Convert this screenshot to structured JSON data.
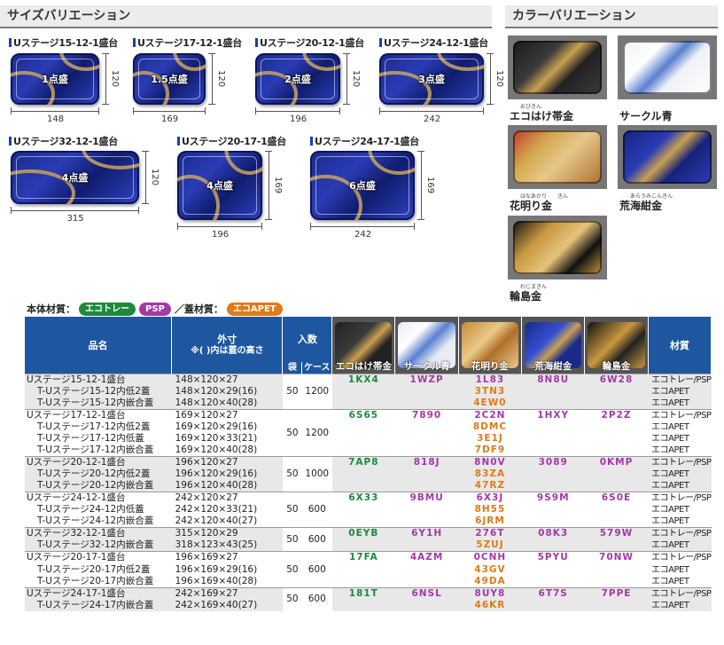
{
  "size_section": {
    "title": "サイズバリエーション",
    "items": [
      {
        "name": "Uステージ15-12-1盛台",
        "label": "1点盛",
        "w": "148",
        "h": "120"
      },
      {
        "name": "Uステージ17-12-1盛台",
        "label": "1.5点盛",
        "w": "169",
        "h": "120"
      },
      {
        "name": "Uステージ20-12-1盛台",
        "label": "2点盛",
        "w": "196",
        "h": "120"
      },
      {
        "name": "Uステージ24-12-1盛台",
        "label": "3点盛",
        "w": "242",
        "h": "120"
      },
      {
        "name": "Uステージ32-12-1盛台",
        "label": "4点盛",
        "w": "315",
        "h": "120"
      },
      {
        "name": "Uステージ20-17-1盛台",
        "label": "4点盛",
        "w": "196",
        "h": "169"
      },
      {
        "name": "Uステージ24-17-1盛台",
        "label": "6点盛",
        "w": "242",
        "h": "169"
      }
    ]
  },
  "color_section": {
    "title": "カラーバリエーション",
    "items": [
      {
        "name": "エコはけ帯金",
        "ruby": "おびきん",
        "color": "#c8a050"
      },
      {
        "name": "サークル青",
        "ruby": "",
        "color": "#5a7fd0"
      },
      {
        "name": "花明り金",
        "ruby": "はなあかり　　きん",
        "color": "#d4a850"
      },
      {
        "name": "荒海紺金",
        "ruby": "あらうみこんきん",
        "color": "#2a3cb5"
      },
      {
        "name": "輪島金",
        "ruby": "わじまきん",
        "color": "#c89840"
      }
    ]
  },
  "materials": {
    "body_label": "本体材質：",
    "body_eco": "エコトレー",
    "body_psp": "PSP",
    "lid_label": "／蓋材質：",
    "lid_pet": "エコAPET",
    "colors": {
      "eco": "#1d8a3b",
      "psp": "#a438a8",
      "pet": "#e07a17"
    }
  },
  "table": {
    "headers": {
      "name": "品名",
      "size": "外寸\n※( )内は蓋の高さ",
      "qty": "入数",
      "bag": "袋",
      "case": "ケース",
      "material": "材質"
    },
    "color_headers": [
      "エコはけ帯金",
      "サークル青",
      "花明り金",
      "荒海紺金",
      "輪島金"
    ],
    "groups": [
      {
        "bag": "50",
        "case": "1200",
        "rows": [
          {
            "name": "Uステージ15-12-1盛台",
            "size": "148×120×27",
            "codes": [
              "1KX4",
              "1WZP",
              "1L83",
              "8N8U",
              "6W28"
            ],
            "mat": "エコトレー/PSP"
          },
          {
            "name": "T-Uステージ15-12内低2蓋",
            "size": "148×120×29(16)",
            "pet": "3TN3",
            "mat": "エコAPET"
          },
          {
            "name": "T-Uステージ15-12内嵌合蓋",
            "size": "148×120×40(28)",
            "pet": "4EW0",
            "mat": "エコAPET"
          }
        ]
      },
      {
        "bag": "50",
        "case": "1200",
        "rows": [
          {
            "name": "Uステージ17-12-1盛台",
            "size": "169×120×27",
            "codes": [
              "6S65",
              "7890",
              "2C2N",
              "1HXY",
              "2P2Z"
            ],
            "mat": "エコトレー/PSP"
          },
          {
            "name": "T-Uステージ17-12内低2蓋",
            "size": "169×120×29(16)",
            "pet": "8DMC",
            "mat": "エコAPET"
          },
          {
            "name": "T-Uステージ17-12内低蓋",
            "size": "169×120×33(21)",
            "pet": "3E1J",
            "mat": "エコAPET"
          },
          {
            "name": "T-Uステージ17-12内嵌合蓋",
            "size": "169×120×40(28)",
            "pet": "7DF9",
            "mat": "エコAPET"
          }
        ]
      },
      {
        "bag": "50",
        "case": "1000",
        "rows": [
          {
            "name": "Uステージ20-12-1盛台",
            "size": "196×120×27",
            "codes": [
              "7AP8",
              "818J",
              "8N0V",
              "3089",
              "0KMP"
            ],
            "mat": "エコトレー/PSP"
          },
          {
            "name": "T-Uステージ20-12内低2蓋",
            "size": "196×120×29(16)",
            "pet": "83ZA",
            "mat": "エコAPET"
          },
          {
            "name": "T-Uステージ20-12内嵌合蓋",
            "size": "196×120×40(28)",
            "pet": "47RZ",
            "mat": "エコAPET"
          }
        ]
      },
      {
        "bag": "50",
        "case": "600",
        "rows": [
          {
            "name": "Uステージ24-12-1盛台",
            "size": "242×120×27",
            "codes": [
              "6X33",
              "9BMU",
              "6X3J",
              "9S9M",
              "6S0E"
            ],
            "mat": "エコトレー/PSP"
          },
          {
            "name": "T-Uステージ24-12内低蓋",
            "size": "242×120×33(21)",
            "pet": "8H55",
            "mat": "エコAPET"
          },
          {
            "name": "T-Uステージ24-12内嵌合蓋",
            "size": "242×120×40(27)",
            "pet": "6JRM",
            "mat": "エコAPET"
          }
        ]
      },
      {
        "bag": "50",
        "case": "600",
        "rows": [
          {
            "name": "Uステージ32-12-1盛台",
            "size": "315×120×29",
            "codes": [
              "0EYB",
              "6Y1H",
              "276T",
              "08K3",
              "579W"
            ],
            "mat": "エコトレー/PSP"
          },
          {
            "name": "T-Uステージ32-12内嵌合蓋",
            "size": "318×123×43(25)",
            "pet": "5ZUJ",
            "mat": "エコAPET"
          }
        ]
      },
      {
        "bag": "50",
        "case": "600",
        "rows": [
          {
            "name": "Uステージ20-17-1盛台",
            "size": "196×169×27",
            "codes": [
              "17FA",
              "4AZM",
              "0CNH",
              "5PYU",
              "70NW"
            ],
            "mat": "エコトレー/PSP"
          },
          {
            "name": "T-Uステージ20-17内低2蓋",
            "size": "196×169×29(16)",
            "pet": "43GV",
            "mat": "エコAPET"
          },
          {
            "name": "T-Uステージ20-17内嵌合蓋",
            "size": "196×169×40(28)",
            "pet": "49DA",
            "mat": "エコAPET"
          }
        ]
      },
      {
        "bag": "50",
        "case": "600",
        "rows": [
          {
            "name": "Uステージ24-17-1盛台",
            "size": "242×169×27",
            "codes": [
              "181T",
              "6NSL",
              "8UY8",
              "6T7S",
              "7PPE"
            ],
            "mat": "エコトレー/PSP"
          },
          {
            "name": "T-Uステージ24-17内嵌合蓋",
            "size": "242×169×40(27)",
            "pet": "46KR",
            "mat": "エコAPET"
          }
        ]
      }
    ]
  }
}
